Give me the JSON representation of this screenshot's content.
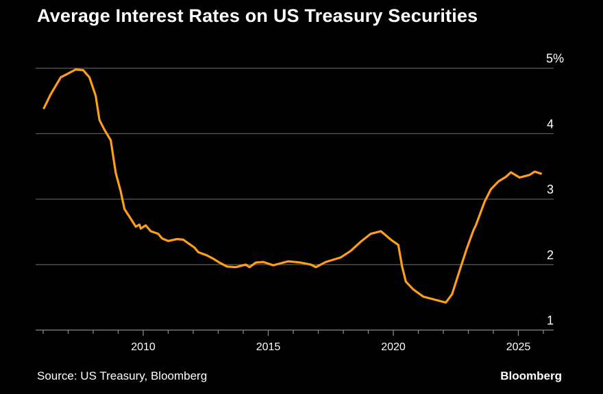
{
  "chart_data": {
    "type": "line",
    "title": "Average Interest Rates on US Treasury Securities",
    "xlabel": "",
    "ylabel": "",
    "ylim": [
      1,
      5
    ],
    "xlim": [
      2005.9,
      2026.2
    ],
    "y_ticks": [
      {
        "value": 5,
        "label": "5%"
      },
      {
        "value": 4,
        "label": "4"
      },
      {
        "value": 3,
        "label": "3"
      },
      {
        "value": 2,
        "label": "2"
      },
      {
        "value": 1,
        "label": "1"
      }
    ],
    "x_ticks": [
      {
        "value": 2010,
        "label": "2010"
      },
      {
        "value": 2015,
        "label": "2015"
      },
      {
        "value": 2020,
        "label": "2020"
      },
      {
        "value": 2025,
        "label": "2025"
      }
    ],
    "grid": true,
    "line_color": "#ff9e1b",
    "series": [
      {
        "x": [
          2006.03,
          2006.3,
          2006.7,
          2007.0,
          2007.3,
          2007.6,
          2007.85,
          2008.1,
          2008.25,
          2008.45,
          2008.7,
          2008.9,
          2009.1,
          2009.25,
          2009.5,
          2009.7,
          2009.85,
          2009.9,
          2010.1,
          2010.3,
          2010.6,
          2010.75,
          2011.0,
          2011.35,
          2011.6,
          2012.05,
          2012.2,
          2012.55,
          2012.8,
          2013.05,
          2013.35,
          2013.7,
          2014.1,
          2014.25,
          2014.5,
          2014.8,
          2015.2,
          2015.8,
          2016.3,
          2016.7,
          2016.9,
          2017.3,
          2017.9,
          2018.3,
          2018.7,
          2019.1,
          2019.5,
          2019.9,
          2020.2,
          2020.35,
          2020.5,
          2020.8,
          2021.2,
          2021.7,
          2022.1,
          2022.35,
          2022.7,
          2022.95,
          2023.2,
          2023.3,
          2023.65,
          2023.9,
          2024.2,
          2024.5,
          2024.7,
          2025.05,
          2025.45,
          2025.65,
          2025.9
        ],
        "values": [
          4.39,
          4.6,
          4.86,
          4.92,
          4.98,
          4.97,
          4.86,
          4.58,
          4.21,
          4.06,
          3.9,
          3.4,
          3.12,
          2.85,
          2.7,
          2.58,
          2.61,
          2.55,
          2.6,
          2.51,
          2.47,
          2.4,
          2.36,
          2.39,
          2.38,
          2.26,
          2.19,
          2.14,
          2.09,
          2.03,
          1.97,
          1.96,
          2.0,
          1.96,
          2.03,
          2.04,
          1.99,
          2.05,
          2.03,
          2.0,
          1.96,
          2.04,
          2.11,
          2.21,
          2.35,
          2.47,
          2.51,
          2.38,
          2.3,
          1.97,
          1.74,
          1.62,
          1.51,
          1.46,
          1.42,
          1.55,
          1.97,
          2.26,
          2.52,
          2.6,
          2.96,
          3.15,
          3.27,
          3.34,
          3.41,
          3.33,
          3.37,
          3.42,
          3.39
        ]
      }
    ],
    "source": "Source: US Treasury, Bloomberg",
    "brand": "Bloomberg"
  }
}
